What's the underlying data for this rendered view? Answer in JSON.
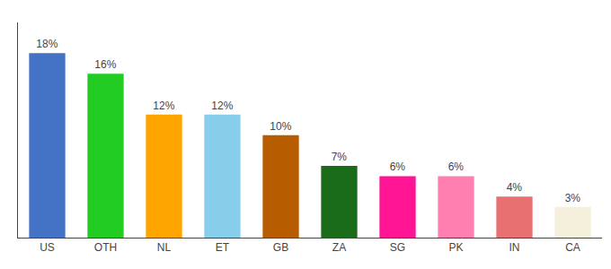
{
  "chart_data": {
    "type": "bar",
    "categories": [
      "US",
      "OTH",
      "NL",
      "ET",
      "GB",
      "ZA",
      "SG",
      "PK",
      "IN",
      "CA"
    ],
    "values": [
      18,
      16,
      12,
      12,
      10,
      7,
      6,
      6,
      4,
      3
    ],
    "value_labels": [
      "18%",
      "16%",
      "12%",
      "12%",
      "10%",
      "7%",
      "6%",
      "6%",
      "4%",
      "3%"
    ],
    "colors": [
      "#4472c4",
      "#22cc22",
      "#ffa500",
      "#87ceeb",
      "#b85c00",
      "#1a6b1a",
      "#ff1493",
      "#ff80b0",
      "#e87070",
      "#f5f0dc"
    ],
    "ylim": [
      0,
      21
    ],
    "data_labels": true,
    "tick_labels": "x",
    "grid": false
  }
}
